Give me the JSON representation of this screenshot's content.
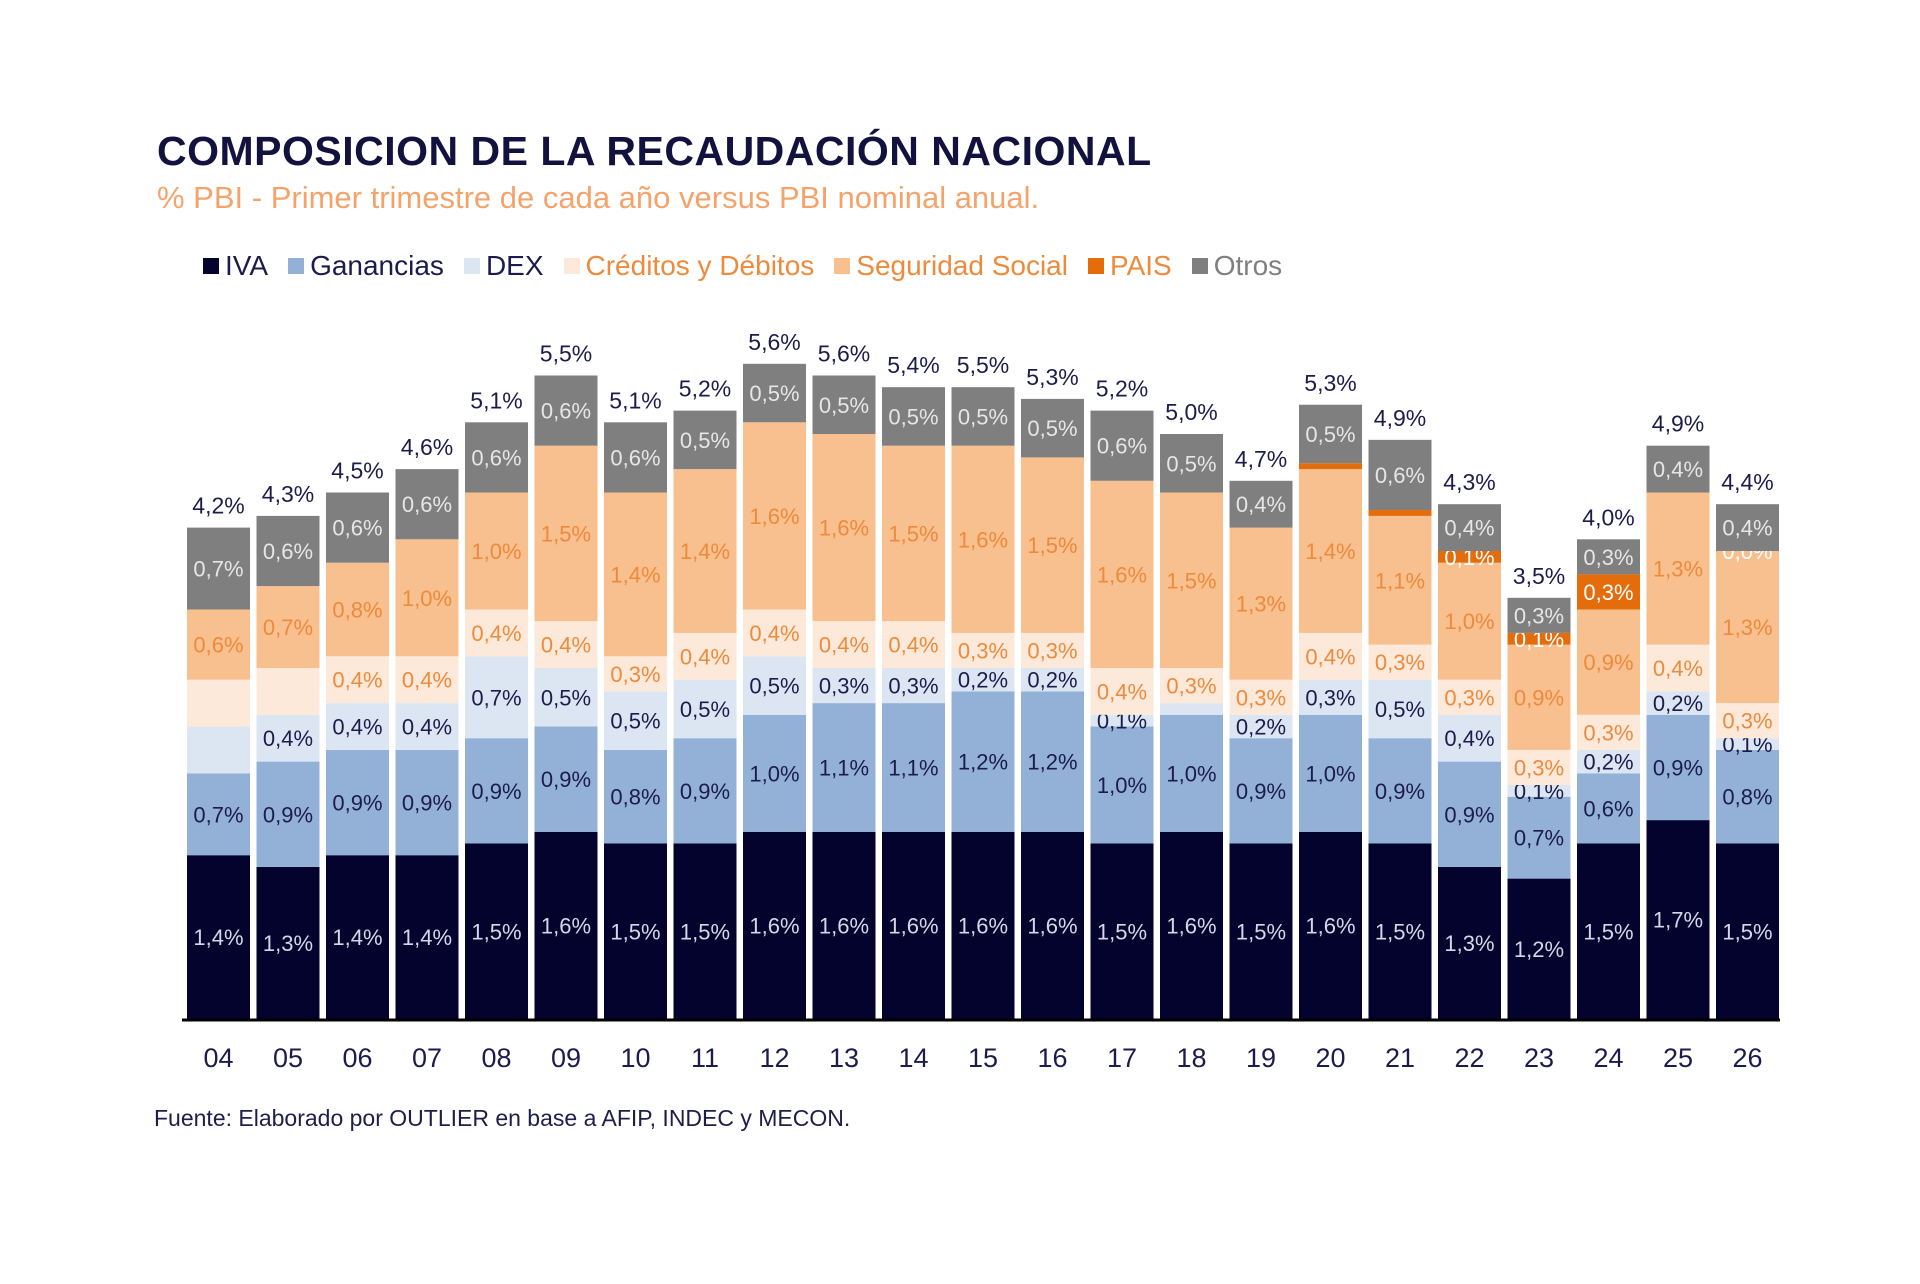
{
  "chart_data": {
    "type": "bar",
    "stacked": true,
    "title": "COMPOSICION DE LA RECAUDACIÓN NACIONAL",
    "subtitle": "% PBI - Primer trimestre de cada año versus PBI nominal anual.",
    "source": "Fuente: Elaborado por OUTLIER en base a AFIP, INDEC y MECON.",
    "legend_position": "top",
    "grid": false,
    "categories": [
      "04",
      "05",
      "06",
      "07",
      "08",
      "09",
      "10",
      "11",
      "12",
      "13",
      "14",
      "15",
      "16",
      "17",
      "18",
      "19",
      "20",
      "21",
      "22",
      "23",
      "24",
      "25",
      "26"
    ],
    "totals": [
      "4,2%",
      "4,3%",
      "4,5%",
      "4,6%",
      "5,1%",
      "5,5%",
      "5,1%",
      "5,2%",
      "5,6%",
      "5,6%",
      "5,4%",
      "5,5%",
      "5,3%",
      "5,2%",
      "5,0%",
      "4,7%",
      "5,3%",
      "4,9%",
      "4,3%",
      "3,5%",
      "4,0%",
      "4,9%",
      "4,4%"
    ],
    "series": [
      {
        "name": "IVA",
        "color": "#03032e",
        "label_color": "#d6d6e6",
        "values": [
          1.4,
          1.3,
          1.4,
          1.4,
          1.5,
          1.6,
          1.5,
          1.5,
          1.6,
          1.6,
          1.6,
          1.6,
          1.6,
          1.5,
          1.6,
          1.5,
          1.6,
          1.5,
          1.3,
          1.2,
          1.5,
          1.7,
          1.5
        ],
        "labels": [
          "1,4%",
          "1,3%",
          "1,4%",
          "1,4%",
          "1,5%",
          "1,6%",
          "1,5%",
          "1,5%",
          "1,6%",
          "1,6%",
          "1,6%",
          "1,6%",
          "1,6%",
          "1,5%",
          "1,6%",
          "1,5%",
          "1,6%",
          "1,5%",
          "1,3%",
          "1,2%",
          "1,5%",
          "1,7%",
          "1,5%"
        ]
      },
      {
        "name": "Ganancias",
        "color": "#93b1d7",
        "label_color": "#1c1c4c",
        "values": [
          0.7,
          0.9,
          0.9,
          0.9,
          0.9,
          0.9,
          0.8,
          0.9,
          1.0,
          1.1,
          1.1,
          1.2,
          1.2,
          1.0,
          1.0,
          0.9,
          1.0,
          0.9,
          0.9,
          0.7,
          0.6,
          0.9,
          0.8
        ],
        "labels": [
          "0,7%",
          "0,9%",
          "0,9%",
          "0,9%",
          "0,9%",
          "0,9%",
          "0,8%",
          "0,9%",
          "1,0%",
          "1,1%",
          "1,1%",
          "1,2%",
          "1,2%",
          "1,0%",
          "1,0%",
          "0,9%",
          "1,0%",
          "0,9%",
          "0,9%",
          "0,7%",
          "0,6%",
          "0,9%",
          "0,8%"
        ]
      },
      {
        "name": "DEX",
        "color": "#dce6f2",
        "label_color": "#1c1c4c",
        "values": [
          0.4,
          0.4,
          0.4,
          0.4,
          0.7,
          0.5,
          0.5,
          0.5,
          0.5,
          0.3,
          0.3,
          0.2,
          0.2,
          0.1,
          0.1,
          0.2,
          0.3,
          0.5,
          0.4,
          0.1,
          0.2,
          0.2,
          0.1
        ],
        "labels": [
          "",
          "0,4%",
          "0,4%",
          "0,4%",
          "0,7%",
          "0,5%",
          "0,5%",
          "0,5%",
          "0,5%",
          "0,3%",
          "0,3%",
          "0,2%",
          "0,2%",
          "0,1%",
          "",
          "0,2%",
          "0,3%",
          "0,5%",
          "0,4%",
          "0,1%",
          "0,2%",
          "0,2%",
          "0,1%"
        ]
      },
      {
        "name": "Créditos y Débitos",
        "color": "#fde9d9",
        "label_color": "#ee8a3c",
        "values": [
          0.4,
          0.4,
          0.4,
          0.4,
          0.4,
          0.4,
          0.3,
          0.4,
          0.4,
          0.4,
          0.4,
          0.3,
          0.3,
          0.4,
          0.3,
          0.3,
          0.4,
          0.3,
          0.3,
          0.3,
          0.3,
          0.4,
          0.3
        ],
        "labels": [
          "",
          "",
          "0,4%",
          "0,4%",
          "0,4%",
          "0,4%",
          "0,3%",
          "0,4%",
          "0,4%",
          "0,4%",
          "0,4%",
          "0,3%",
          "0,3%",
          "0,4%",
          "0,3%",
          "0,3%",
          "0,4%",
          "0,3%",
          "0,3%",
          "0,3%",
          "0,3%",
          "0,4%",
          "0,3%"
        ]
      },
      {
        "name": "Seguridad Social",
        "color": "#f8bf8f",
        "label_color": "#ee8a3c",
        "values": [
          0.6,
          0.7,
          0.8,
          1.0,
          1.0,
          1.5,
          1.4,
          1.4,
          1.6,
          1.6,
          1.5,
          1.6,
          1.5,
          1.6,
          1.5,
          1.3,
          1.4,
          1.1,
          1.0,
          0.9,
          0.9,
          1.3,
          1.3
        ],
        "labels": [
          "0,6%",
          "0,7%",
          "0,8%",
          "1,0%",
          "1,0%",
          "1,5%",
          "1,4%",
          "1,4%",
          "1,6%",
          "1,6%",
          "1,5%",
          "1,6%",
          "1,5%",
          "1,6%",
          "1,5%",
          "1,3%",
          "1,4%",
          "1,1%",
          "1,0%",
          "0,9%",
          "0,9%",
          "1,3%",
          "1,3%"
        ]
      },
      {
        "name": "PAIS",
        "color": "#e46c0a",
        "label_color": "#ffffff",
        "values": [
          0,
          0,
          0,
          0,
          0,
          0,
          0,
          0,
          0,
          0,
          0,
          0,
          0,
          0,
          0,
          0,
          0.05,
          0.05,
          0.1,
          0.1,
          0.3,
          0,
          0.0
        ],
        "labels": [
          "",
          "",
          "",
          "",
          "",
          "",
          "",
          "",
          "",
          "",
          "",
          "",
          "",
          "",
          "",
          "",
          "",
          "",
          "0,1%",
          "0,1%",
          "0,3%",
          "",
          "0,0%"
        ]
      },
      {
        "name": "Otros",
        "color": "#7f7f7f",
        "label_color": "#e6e6e6",
        "values": [
          0.7,
          0.6,
          0.6,
          0.6,
          0.6,
          0.6,
          0.6,
          0.5,
          0.5,
          0.5,
          0.5,
          0.5,
          0.5,
          0.6,
          0.5,
          0.4,
          0.5,
          0.6,
          0.4,
          0.3,
          0.3,
          0.4,
          0.4
        ],
        "labels": [
          "0,7%",
          "0,6%",
          "0,6%",
          "0,6%",
          "0,6%",
          "0,6%",
          "0,6%",
          "0,5%",
          "0,5%",
          "0,5%",
          "0,5%",
          "0,5%",
          "0,5%",
          "0,6%",
          "0,5%",
          "0,4%",
          "0,5%",
          "0,6%",
          "0,4%",
          "0,3%",
          "0,3%",
          "0,4%",
          "0,4%"
        ]
      }
    ],
    "legend_text_colors": [
      "#1c1c4c",
      "#1c1c4c",
      "#1c1c4c",
      "#ee8a3c",
      "#ee8a3c",
      "#ee8a3c",
      "#7f7f7f"
    ],
    "colors": {
      "title": "#12123f",
      "subtitle": "#f4a46a",
      "total_label": "#1c1c4c",
      "axis": "#000000"
    }
  }
}
